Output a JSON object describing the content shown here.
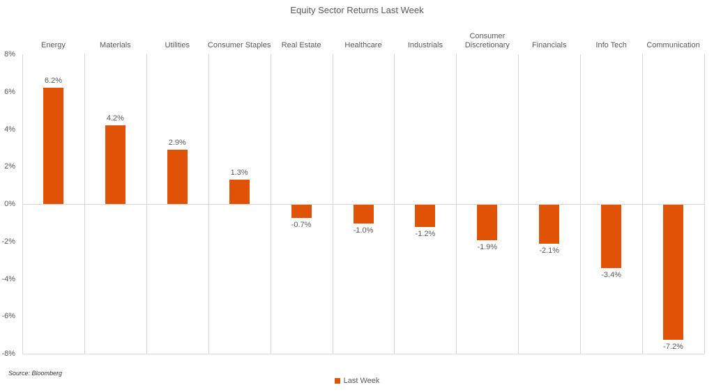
{
  "chart_data": {
    "type": "bar",
    "title": "Equity Sector Returns Last Week",
    "categories": [
      "Energy",
      "Materials",
      "Utilities",
      "Consumer Staples",
      "Real Estate",
      "Healthcare",
      "Industrials",
      "Consumer Discretionary",
      "Financials",
      "Info Tech",
      "Communication"
    ],
    "series": [
      {
        "name": "Last Week",
        "values": [
          6.2,
          4.2,
          2.9,
          1.3,
          -0.7,
          -1.0,
          -1.2,
          -1.9,
          -2.1,
          -3.4,
          -7.2
        ],
        "labels": [
          "6.2%",
          "4.2%",
          "2.9%",
          "1.3%",
          "-0.7%",
          "-1.0%",
          "-1.2%",
          "-1.9%",
          "-2.1%",
          "-3.4%",
          "-7.2%"
        ]
      }
    ],
    "ylabel": "",
    "xlabel": "",
    "ylim": [
      -8,
      8
    ],
    "ytick_step": 2,
    "ytick_labels": [
      "8%",
      "6%",
      "4%",
      "2%",
      "0%",
      "-2%",
      "-4%",
      "-6%",
      "-8%"
    ],
    "grid": "vertical category separators, zero line, bottom line",
    "legend_position": "bottom-center",
    "data_labels": "outside end"
  },
  "legend": {
    "label": "Last Week"
  },
  "footer": {
    "source_note": "Source: Bloomberg"
  },
  "colors": {
    "bar": "#E05206",
    "text": "#595959",
    "gridline": "#D9D9D9",
    "background": "#FFFFFF"
  }
}
